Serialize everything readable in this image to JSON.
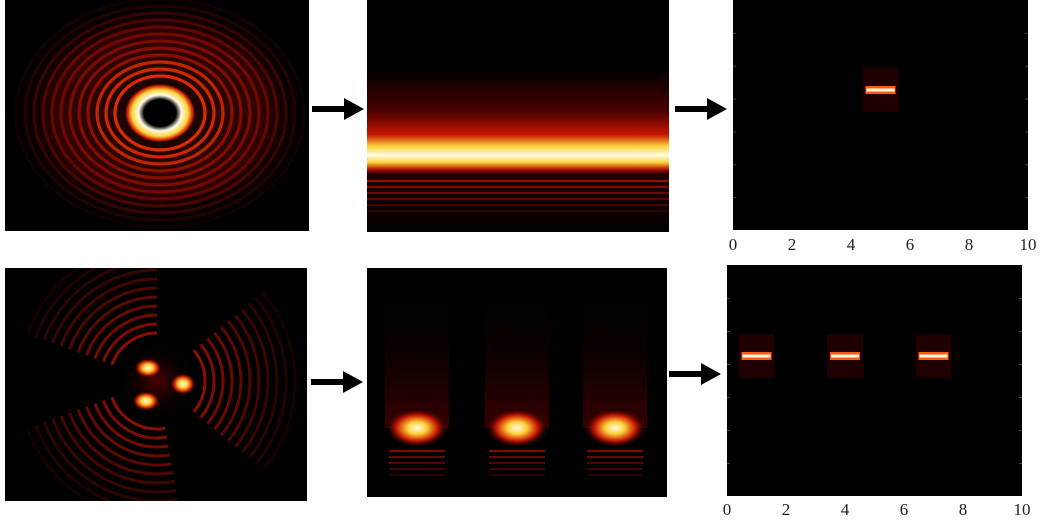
{
  "colors": {
    "background": "#000000",
    "glow_dark": "#8b0000",
    "glow_mid": "#ff3300",
    "glow_hot": "#ffee55",
    "glow_white": "#fffbe8",
    "arrow": "#000000"
  },
  "rows": [
    {
      "id": "top",
      "input_pattern": "single-ring",
      "transformed_pattern": "single-horizontal-band",
      "output_pattern": "single-peak",
      "arrows": [
        "right-arrow-icon",
        "right-arrow-icon"
      ],
      "axis": {
        "tick_labels": [
          "0",
          "2",
          "4",
          "6",
          "8",
          "10"
        ],
        "xlim": [
          0,
          10
        ]
      },
      "peak_positions": [
        5
      ]
    },
    {
      "id": "bottom",
      "input_pattern": "three-lobe",
      "transformed_pattern": "three-spot-band",
      "output_pattern": "three-peaks",
      "arrows": [
        "right-arrow-icon",
        "right-arrow-icon"
      ],
      "axis": {
        "tick_labels": [
          "0",
          "2",
          "4",
          "6",
          "8",
          "10"
        ],
        "xlim": [
          0,
          10
        ]
      },
      "peak_positions": [
        1,
        4,
        7
      ]
    }
  ]
}
